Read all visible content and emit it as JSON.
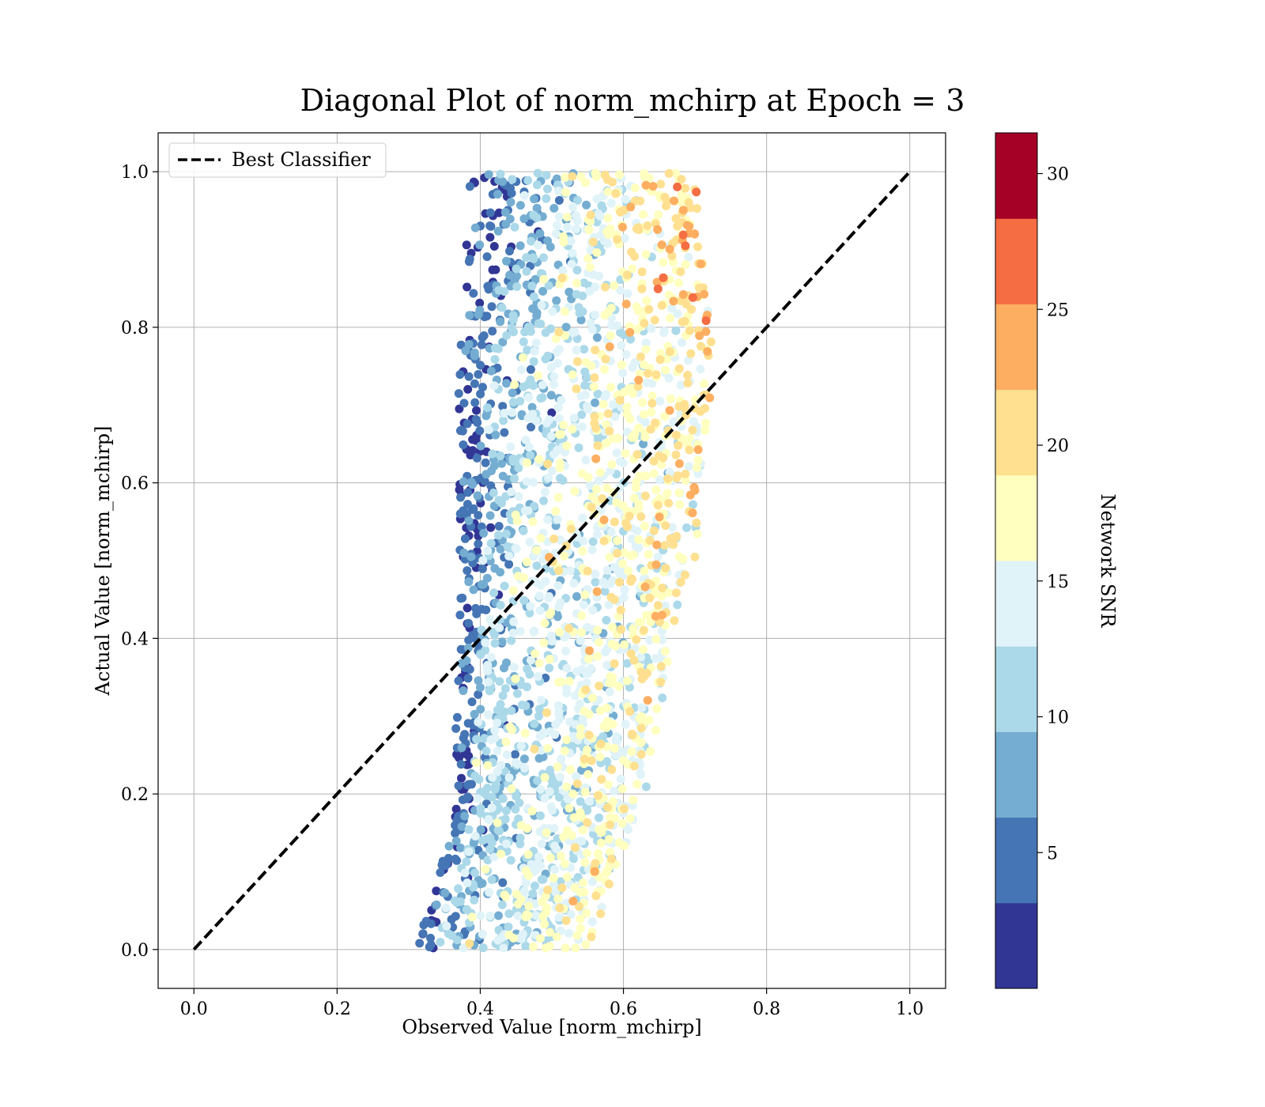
{
  "chart_data": {
    "type": "scatter",
    "title": "Diagonal Plot of norm_mchirp at Epoch = 3",
    "xlabel": "Observed Value [norm_mchirp]",
    "ylabel": "Actual Value [norm_mchirp]",
    "xlim": [
      -0.05,
      1.05
    ],
    "ylim": [
      -0.05,
      1.05
    ],
    "x_ticks": [
      "0.0",
      "0.2",
      "0.4",
      "0.6",
      "0.8",
      "1.0"
    ],
    "y_ticks": [
      "0.0",
      "0.2",
      "0.4",
      "0.6",
      "0.8",
      "1.0"
    ],
    "grid": true,
    "legend": {
      "placement": "top-left",
      "entries": [
        "Best Classifier"
      ]
    },
    "reference_line": {
      "name": "Best Classifier",
      "style": "dashed",
      "color": "#000000",
      "x": [
        0.0,
        1.0
      ],
      "y": [
        0.0,
        1.0
      ]
    },
    "colorbar": {
      "label": "Network SNR",
      "range": [
        0,
        31.5
      ],
      "ticks": [
        "5",
        "10",
        "15",
        "20",
        "25",
        "30"
      ],
      "bands": [
        {
          "from": 0.0,
          "to": 3.15,
          "color": "#313695"
        },
        {
          "from": 3.15,
          "to": 6.3,
          "color": "#4575b4"
        },
        {
          "from": 6.3,
          "to": 9.45,
          "color": "#74add1"
        },
        {
          "from": 9.45,
          "to": 12.6,
          "color": "#abd9e9"
        },
        {
          "from": 12.6,
          "to": 15.75,
          "color": "#e0f3f8"
        },
        {
          "from": 15.75,
          "to": 18.9,
          "color": "#ffffbf"
        },
        {
          "from": 18.9,
          "to": 22.05,
          "color": "#fee090"
        },
        {
          "from": 22.05,
          "to": 25.2,
          "color": "#fdae61"
        },
        {
          "from": 25.2,
          "to": 28.35,
          "color": "#f46d43"
        },
        {
          "from": 28.35,
          "to": 31.5,
          "color": "#a50026"
        }
      ]
    },
    "points": {
      "count": 2500,
      "x_range": [
        0.31,
        0.74
      ],
      "y_range": [
        0.0,
        1.0
      ],
      "color_value_range": [
        0.5,
        31
      ]
    }
  }
}
